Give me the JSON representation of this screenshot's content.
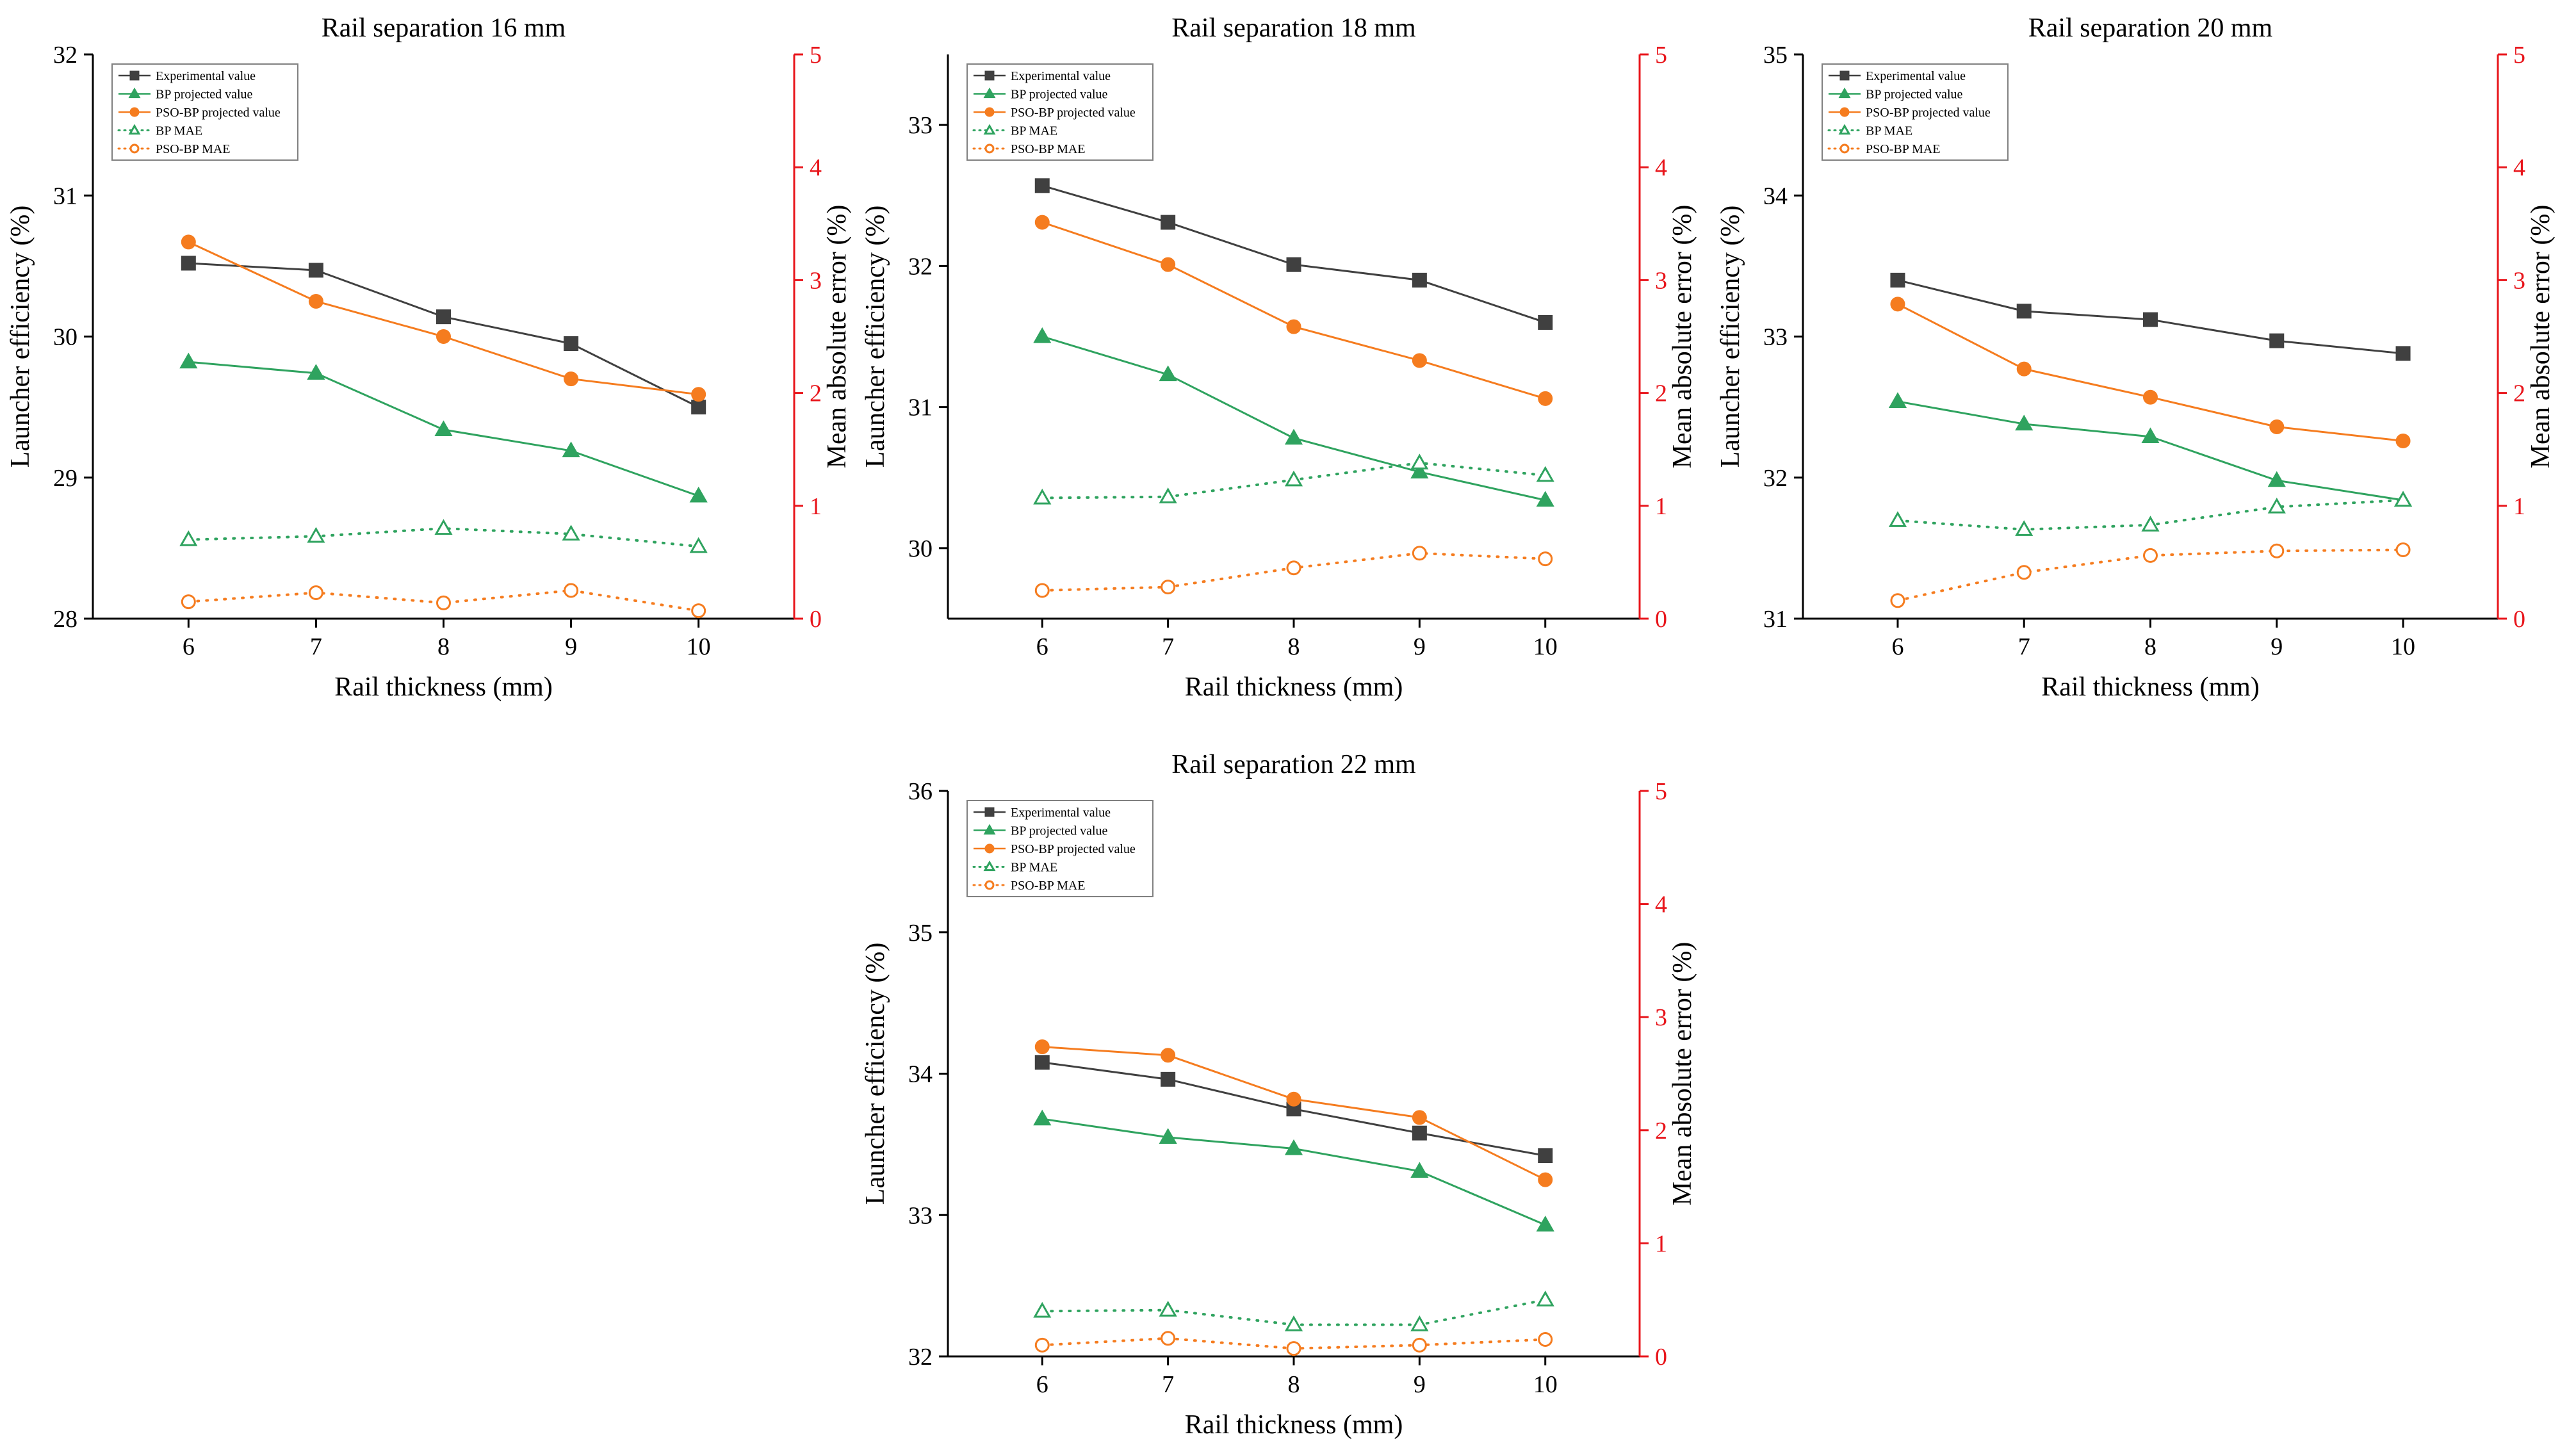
{
  "colors": {
    "experimental": "#404040",
    "bp": "#2fa35f",
    "pso": "#f57c1f",
    "right_axis": "#e8151b",
    "axis": "#000000",
    "legend_border": "#808080"
  },
  "legend": {
    "experimental": "Experimental value",
    "bp": "BP projected value",
    "pso": "PSO-BP projected value",
    "bp_mae": "BP MAE",
    "pso_mae": "PSO-BP MAE"
  },
  "chart_data": [
    {
      "type": "line",
      "title": "Rail  separation 16 mm",
      "xlabel": "Rail thickness (mm)",
      "ylabel": "Launcher efficiency (%)",
      "y2label": "Mean absolute error (%)",
      "x": [
        6,
        7,
        8,
        9,
        10
      ],
      "xticks": [
        "6",
        "7",
        "8",
        "9",
        "10"
      ],
      "ylim": [
        28,
        32
      ],
      "yticks": [
        "28",
        "29",
        "30",
        "31",
        "32"
      ],
      "y2lim": [
        0,
        5
      ],
      "y2ticks": [
        "0",
        "1",
        "2",
        "3",
        "4",
        "5"
      ],
      "series": [
        {
          "name": "Experimental value",
          "axis": "left",
          "values": [
            30.52,
            30.47,
            30.14,
            29.95,
            29.5
          ]
        },
        {
          "name": "BP projected value",
          "axis": "left",
          "values": [
            29.82,
            29.74,
            29.34,
            29.19,
            28.87
          ]
        },
        {
          "name": "PSO-BP projected value",
          "axis": "left",
          "values": [
            30.67,
            30.25,
            30.0,
            29.7,
            29.59
          ]
        },
        {
          "name": "BP MAE",
          "axis": "right",
          "values": [
            0.7,
            0.73,
            0.8,
            0.75,
            0.64
          ]
        },
        {
          "name": "PSO-BP MAE",
          "axis": "right",
          "values": [
            0.15,
            0.23,
            0.14,
            0.25,
            0.07
          ]
        }
      ]
    },
    {
      "type": "line",
      "title": "Rail  separation 18 mm",
      "xlabel": "Rail thickness (mm)",
      "ylabel": "Launcher efficiency (%)",
      "y2label": "Mean absolute error (%)",
      "x": [
        6,
        7,
        8,
        9,
        10
      ],
      "xticks": [
        "6",
        "7",
        "8",
        "9",
        "10"
      ],
      "ylim": [
        29.5,
        33.5
      ],
      "yticks": [
        "30",
        "31",
        "32",
        "33"
      ],
      "y2lim": [
        0,
        5
      ],
      "y2ticks": [
        "0",
        "1",
        "2",
        "3",
        "4",
        "5"
      ],
      "series": [
        {
          "name": "Experimental value",
          "axis": "left",
          "values": [
            32.57,
            32.31,
            32.01,
            31.9,
            31.6
          ]
        },
        {
          "name": "BP projected value",
          "axis": "left",
          "values": [
            31.5,
            31.23,
            30.78,
            30.54,
            30.34
          ]
        },
        {
          "name": "PSO-BP projected value",
          "axis": "left",
          "values": [
            32.31,
            32.01,
            31.57,
            31.33,
            31.06
          ]
        },
        {
          "name": "BP MAE",
          "axis": "right",
          "values": [
            1.07,
            1.08,
            1.23,
            1.38,
            1.27
          ]
        },
        {
          "name": "PSO-BP MAE",
          "axis": "right",
          "values": [
            0.25,
            0.28,
            0.45,
            0.58,
            0.53
          ]
        }
      ]
    },
    {
      "type": "line",
      "title": "Rail  separation 20 mm",
      "xlabel": "Rail thickness (mm)",
      "ylabel": "Launcher efficiency (%)",
      "y2label": "Mean absolute error (%)",
      "x": [
        6,
        7,
        8,
        9,
        10
      ],
      "xticks": [
        "6",
        "7",
        "8",
        "9",
        "10"
      ],
      "ylim": [
        31,
        35
      ],
      "yticks": [
        "31",
        "32",
        "33",
        "34",
        "35"
      ],
      "y2lim": [
        0,
        5
      ],
      "y2ticks": [
        "0",
        "1",
        "2",
        "3",
        "4",
        "5"
      ],
      "series": [
        {
          "name": "Experimental value",
          "axis": "left",
          "values": [
            33.4,
            33.18,
            33.12,
            32.97,
            32.88
          ]
        },
        {
          "name": "BP projected value",
          "axis": "left",
          "values": [
            32.54,
            32.38,
            32.29,
            31.98,
            31.84
          ]
        },
        {
          "name": "PSO-BP projected value",
          "axis": "left",
          "values": [
            33.23,
            32.77,
            32.57,
            32.36,
            32.26
          ]
        },
        {
          "name": "BP MAE",
          "axis": "right",
          "values": [
            0.87,
            0.79,
            0.83,
            0.99,
            1.05
          ]
        },
        {
          "name": "PSO-BP MAE",
          "axis": "right",
          "values": [
            0.16,
            0.41,
            0.56,
            0.6,
            0.61
          ]
        }
      ]
    },
    {
      "type": "line",
      "title": "Rail  separation 22 mm",
      "xlabel": "Rail thickness (mm)",
      "ylabel": "Launcher efficiency (%)",
      "y2label": "Mean absolute error (%)",
      "x": [
        6,
        7,
        8,
        9,
        10
      ],
      "xticks": [
        "6",
        "7",
        "8",
        "9",
        "10"
      ],
      "ylim": [
        32,
        36
      ],
      "yticks": [
        "32",
        "33",
        "34",
        "35",
        "36"
      ],
      "y2lim": [
        0,
        5
      ],
      "y2ticks": [
        "0",
        "1",
        "2",
        "3",
        "4",
        "5"
      ],
      "series": [
        {
          "name": "Experimental value",
          "axis": "left",
          "values": [
            34.08,
            33.96,
            33.75,
            33.58,
            33.42
          ]
        },
        {
          "name": "BP projected value",
          "axis": "left",
          "values": [
            33.68,
            33.55,
            33.47,
            33.31,
            32.93
          ]
        },
        {
          "name": "PSO-BP projected value",
          "axis": "left",
          "values": [
            34.19,
            34.13,
            33.82,
            33.69,
            33.25
          ]
        },
        {
          "name": "BP MAE",
          "axis": "right",
          "values": [
            0.4,
            0.41,
            0.28,
            0.28,
            0.5
          ]
        },
        {
          "name": "PSO-BP MAE",
          "axis": "right",
          "values": [
            0.1,
            0.16,
            0.07,
            0.1,
            0.15
          ]
        }
      ]
    }
  ]
}
